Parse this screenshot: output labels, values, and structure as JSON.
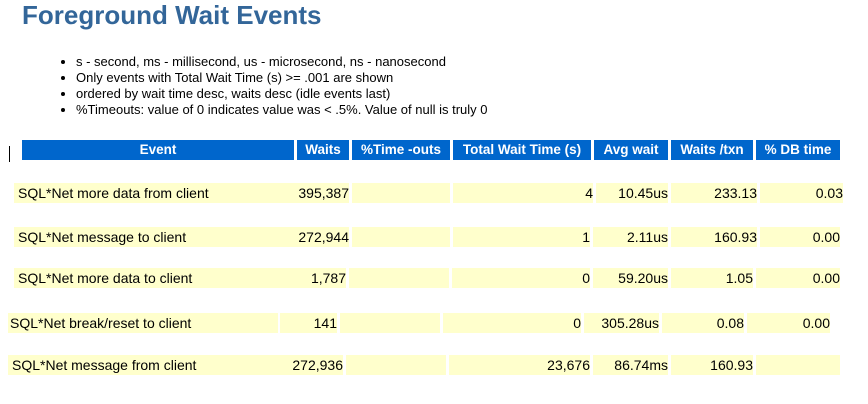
{
  "page_title": "Foreground Wait Events",
  "notes": [
    "s - second, ms - millisecond, us - microsecond, ns - nanosecond",
    "Only events with Total Wait Time (s) >= .001 are shown",
    "ordered by wait time desc, waits desc (idle events last)",
    "%Timeouts: value of 0 indicates value was < .5%. Value of null is truly 0"
  ],
  "table": {
    "headers": [
      "Event",
      "Waits",
      "%Time -outs",
      "Total Wait Time (s)",
      "Avg wait",
      "Waits /txn",
      "% DB time"
    ],
    "rows": [
      [
        "SQL*Net more data from client",
        "395,387",
        "",
        "4",
        "10.45us",
        "233.13",
        "0.03"
      ],
      [
        "SQL*Net message to client",
        "272,944",
        "",
        "1",
        "2.11us",
        "160.93",
        "0.00"
      ],
      [
        "SQL*Net more data to client",
        "1,787",
        "",
        "0",
        "59.20us",
        "1.05",
        "0.00"
      ],
      [
        "SQL*Net break/reset to client",
        "141",
        "",
        "0",
        "305.28us",
        "0.08",
        "0.00"
      ],
      [
        "SQL*Net message from client",
        "272,936",
        "",
        "23,676",
        "86.74ms",
        "160.93",
        ""
      ]
    ]
  }
}
